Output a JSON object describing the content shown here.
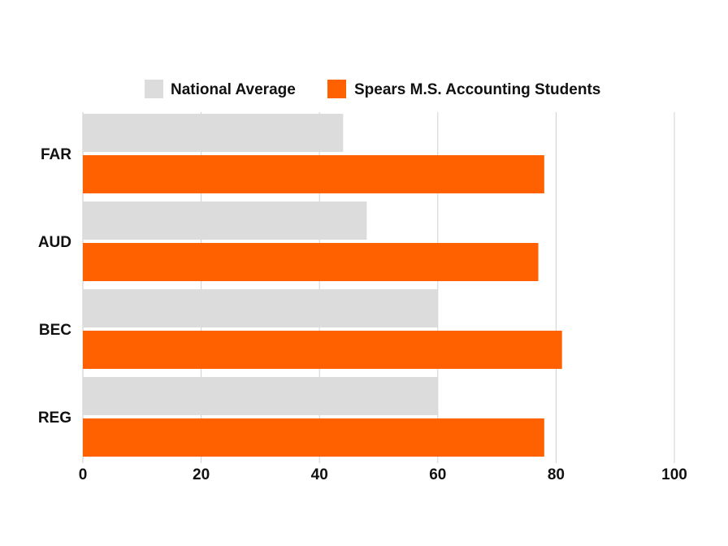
{
  "chart_data": {
    "type": "bar",
    "orientation": "horizontal",
    "title": "",
    "xlabel": "",
    "ylabel": "",
    "categories": [
      "FAR",
      "AUD",
      "BEC",
      "REG"
    ],
    "series": [
      {
        "name": "National Average",
        "values": [
          44,
          48,
          60,
          60
        ],
        "color": "#dcdcdc"
      },
      {
        "name": "Spears M.S. Accounting Students",
        "values": [
          78,
          77,
          81,
          78
        ],
        "color": "#ff6000"
      }
    ],
    "xlim": [
      0,
      100
    ],
    "xticks": [
      "0",
      "20",
      "40",
      "60",
      "80",
      "100"
    ],
    "grid": true,
    "legend_position": "top"
  }
}
